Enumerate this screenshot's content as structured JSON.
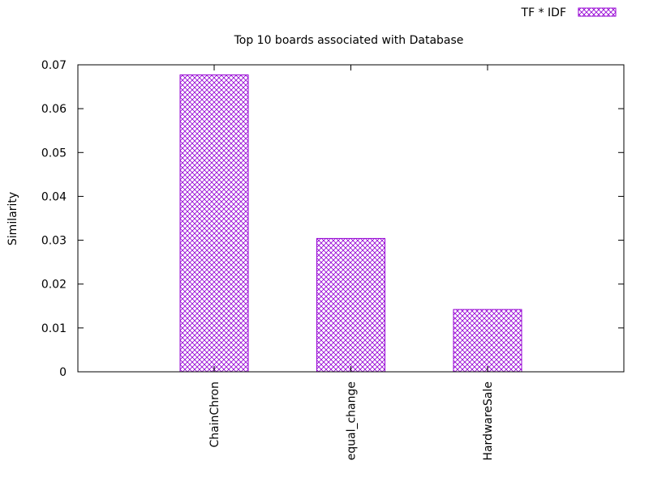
{
  "chart_data": {
    "type": "bar",
    "title": "Top 10 boards associated with Database",
    "xlabel": "",
    "ylabel": "Similarity",
    "categories": [
      "ChainChron",
      "equal_change",
      "HardwareSale"
    ],
    "series": [
      {
        "name": "TF * IDF",
        "values": [
          0.0677,
          0.0304,
          0.0142
        ]
      }
    ],
    "ylim": [
      0,
      0.07
    ],
    "yticks": [
      "0",
      "0.01",
      "0.02",
      "0.03",
      "0.04",
      "0.05",
      "0.06",
      "0.07"
    ],
    "grid": false,
    "legend_position": "top-right",
    "colors": {
      "bar": "#9400d3",
      "axis": "#000000"
    },
    "fill_pattern": "crosshatch"
  }
}
